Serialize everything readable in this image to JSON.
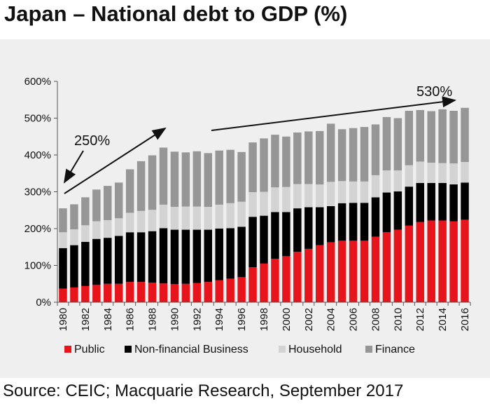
{
  "title": "Japan – National debt to GDP (%)",
  "source": "Source: CEIC; Macquarie Research, September 2017",
  "chart_data": {
    "type": "bar",
    "stacked": true,
    "x": [
      1980,
      1981,
      1982,
      1983,
      1984,
      1985,
      1986,
      1987,
      1988,
      1989,
      1990,
      1991,
      1992,
      1993,
      1994,
      1995,
      1996,
      1997,
      1998,
      1999,
      2000,
      2001,
      2002,
      2003,
      2004,
      2005,
      2006,
      2007,
      2008,
      2009,
      2010,
      2011,
      2012,
      2013,
      2014,
      2015,
      2016
    ],
    "x_tick_labels": [
      "1980",
      "1982",
      "1984",
      "1986",
      "1988",
      "1990",
      "1992",
      "1994",
      "1996",
      "1998",
      "2000",
      "2002",
      "2004",
      "2006",
      "2008",
      "2010",
      "2012",
      "2014",
      "2016"
    ],
    "y_tick_labels": [
      "0%",
      "100%",
      "200%",
      "300%",
      "400%",
      "500%",
      "600%"
    ],
    "ylim": [
      0,
      600
    ],
    "series": [
      {
        "name": "Public",
        "color": "#e8141b",
        "values": [
          37,
          40,
          44,
          47,
          50,
          50,
          55,
          55,
          53,
          51,
          49,
          50,
          52,
          55,
          60,
          64,
          68,
          95,
          105,
          118,
          125,
          137,
          145,
          155,
          163,
          167,
          167,
          167,
          178,
          190,
          197,
          208,
          218,
          222,
          222,
          220,
          224
        ]
      },
      {
        "name": "Non-financial Business",
        "color": "#000000",
        "values": [
          110,
          115,
          120,
          125,
          125,
          130,
          135,
          135,
          140,
          150,
          148,
          147,
          145,
          142,
          140,
          137,
          137,
          137,
          130,
          127,
          120,
          118,
          113,
          103,
          98,
          102,
          103,
          103,
          107,
          108,
          104,
          106,
          106,
          102,
          102,
          100,
          101
        ]
      },
      {
        "name": "Household",
        "color": "#d3d3d3",
        "values": [
          43,
          43,
          45,
          48,
          48,
          48,
          53,
          58,
          58,
          64,
          62,
          63,
          63,
          62,
          65,
          68,
          68,
          67,
          65,
          67,
          68,
          66,
          63,
          62,
          66,
          60,
          58,
          58,
          60,
          60,
          57,
          58,
          58,
          55,
          54,
          57,
          56
        ]
      },
      {
        "name": "Finance",
        "color": "#969696",
        "values": [
          65,
          68,
          76,
          86,
          93,
          97,
          118,
          135,
          148,
          155,
          150,
          147,
          150,
          146,
          147,
          145,
          135,
          135,
          145,
          143,
          137,
          140,
          143,
          145,
          158,
          141,
          145,
          148,
          138,
          145,
          142,
          148,
          140,
          140,
          146,
          143,
          147
        ]
      }
    ],
    "annotations": [
      "250%",
      "530%"
    ],
    "legend_position": "bottom",
    "grid": false
  }
}
